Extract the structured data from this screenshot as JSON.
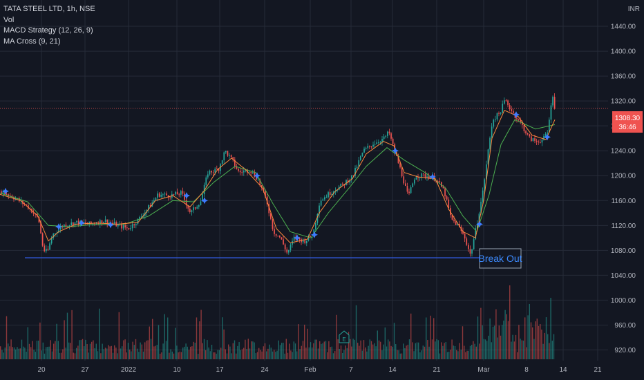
{
  "legend": {
    "symbol": "TATA STEEL LTD, 1h, NSE",
    "vol": "Vol",
    "macd": "MACD Strategy (12, 26, 9)",
    "ma": "MA Cross (9, 21)"
  },
  "currency_label": "INR",
  "price_badge": {
    "price": "1308.30",
    "countdown": "36:46"
  },
  "annotation": {
    "text": "Break Out"
  },
  "colors": {
    "background": "#131722",
    "grid": "#262b38",
    "up": "#26a69a",
    "down": "#ef5350",
    "ma_fast": "#ff8a3d",
    "ma_slow": "#4caf50",
    "signal": "#3d7bff",
    "support": "#3056d3"
  },
  "chart_data": {
    "type": "candlestick",
    "ylim": [
      905,
      1480
    ],
    "y_ticks": [
      1440,
      1400,
      1360,
      1320,
      1280,
      1240,
      1200,
      1160,
      1120,
      1080,
      1040,
      1000,
      960,
      920
    ],
    "y_tick_labels": [
      "1440.00",
      "1400.00",
      "1360.00",
      "1320.00",
      "1280.00",
      "1240.00",
      "1200.00",
      "1160.00",
      "1120.00",
      "1080.00",
      "1040.00",
      "1000.00",
      "960.00",
      "920.00"
    ],
    "x_ticks": [
      "20",
      "27",
      "2022",
      "10",
      "17",
      "24",
      "Feb",
      "7",
      "14",
      "21",
      "Mar",
      "8",
      "14",
      "21"
    ],
    "current_price": 1308.3,
    "support_level": 1068,
    "price_path": [
      [
        0,
        1175
      ],
      [
        15,
        1168
      ],
      [
        40,
        1150
      ],
      [
        55,
        1130
      ],
      [
        62,
        1080
      ],
      [
        68,
        1078
      ],
      [
        75,
        1105
      ],
      [
        90,
        1120
      ],
      [
        110,
        1125
      ],
      [
        130,
        1122
      ],
      [
        150,
        1128
      ],
      [
        170,
        1120
      ],
      [
        185,
        1115
      ],
      [
        200,
        1130
      ],
      [
        215,
        1150
      ],
      [
        228,
        1170
      ],
      [
        245,
        1168
      ],
      [
        262,
        1172
      ],
      [
        275,
        1140
      ],
      [
        290,
        1160
      ],
      [
        300,
        1205
      ],
      [
        315,
        1210
      ],
      [
        325,
        1240
      ],
      [
        335,
        1225
      ],
      [
        345,
        1205
      ],
      [
        360,
        1210
      ],
      [
        372,
        1195
      ],
      [
        385,
        1160
      ],
      [
        395,
        1110
      ],
      [
        405,
        1100
      ],
      [
        415,
        1075
      ],
      [
        425,
        1100
      ],
      [
        440,
        1095
      ],
      [
        452,
        1105
      ],
      [
        462,
        1160
      ],
      [
        480,
        1175
      ],
      [
        495,
        1185
      ],
      [
        510,
        1200
      ],
      [
        525,
        1240
      ],
      [
        540,
        1252
      ],
      [
        555,
        1260
      ],
      [
        562,
        1270
      ],
      [
        570,
        1240
      ],
      [
        580,
        1205
      ],
      [
        590,
        1165
      ],
      [
        600,
        1200
      ],
      [
        615,
        1200
      ],
      [
        630,
        1195
      ],
      [
        642,
        1175
      ],
      [
        652,
        1130
      ],
      [
        662,
        1120
      ],
      [
        672,
        1100
      ],
      [
        680,
        1072
      ],
      [
        688,
        1115
      ],
      [
        698,
        1175
      ],
      [
        705,
        1235
      ],
      [
        712,
        1290
      ],
      [
        722,
        1300
      ],
      [
        730,
        1322
      ],
      [
        742,
        1300
      ],
      [
        755,
        1280
      ],
      [
        765,
        1260
      ],
      [
        775,
        1255
      ],
      [
        785,
        1258
      ],
      [
        792,
        1270
      ],
      [
        798,
        1330
      ],
      [
        803,
        1306
      ]
    ],
    "ma_fast": [
      [
        0,
        1170
      ],
      [
        30,
        1160
      ],
      [
        55,
        1135
      ],
      [
        70,
        1095
      ],
      [
        85,
        1110
      ],
      [
        110,
        1122
      ],
      [
        140,
        1124
      ],
      [
        170,
        1122
      ],
      [
        200,
        1125
      ],
      [
        225,
        1160
      ],
      [
        250,
        1168
      ],
      [
        275,
        1150
      ],
      [
        295,
        1175
      ],
      [
        315,
        1210
      ],
      [
        335,
        1228
      ],
      [
        355,
        1210
      ],
      [
        380,
        1180
      ],
      [
        400,
        1115
      ],
      [
        420,
        1092
      ],
      [
        445,
        1098
      ],
      [
        462,
        1140
      ],
      [
        485,
        1175
      ],
      [
        510,
        1195
      ],
      [
        530,
        1235
      ],
      [
        555,
        1255
      ],
      [
        570,
        1248
      ],
      [
        585,
        1205
      ],
      [
        605,
        1198
      ],
      [
        630,
        1195
      ],
      [
        650,
        1145
      ],
      [
        670,
        1110
      ],
      [
        688,
        1100
      ],
      [
        700,
        1160
      ],
      [
        712,
        1260
      ],
      [
        730,
        1305
      ],
      [
        750,
        1295
      ],
      [
        770,
        1265
      ],
      [
        790,
        1258
      ],
      [
        803,
        1290
      ]
    ],
    "ma_slow": [
      [
        0,
        1172
      ],
      [
        40,
        1158
      ],
      [
        70,
        1120
      ],
      [
        100,
        1118
      ],
      [
        140,
        1122
      ],
      [
        180,
        1122
      ],
      [
        215,
        1135
      ],
      [
        250,
        1160
      ],
      [
        280,
        1158
      ],
      [
        310,
        1190
      ],
      [
        340,
        1215
      ],
      [
        370,
        1205
      ],
      [
        395,
        1155
      ],
      [
        420,
        1110
      ],
      [
        450,
        1100
      ],
      [
        475,
        1140
      ],
      [
        505,
        1180
      ],
      [
        530,
        1215
      ],
      [
        560,
        1245
      ],
      [
        585,
        1225
      ],
      [
        615,
        1205
      ],
      [
        645,
        1180
      ],
      [
        670,
        1135
      ],
      [
        690,
        1110
      ],
      [
        708,
        1170
      ],
      [
        725,
        1250
      ],
      [
        745,
        1290
      ],
      [
        775,
        1275
      ],
      [
        803,
        1282
      ]
    ],
    "signals": [
      [
        8,
        1175
      ],
      [
        85,
        1118
      ],
      [
        118,
        1124
      ],
      [
        160,
        1121
      ],
      [
        270,
        1168
      ],
      [
        296,
        1160
      ],
      [
        372,
        1200
      ],
      [
        430,
        1100
      ],
      [
        455,
        1105
      ],
      [
        572,
        1240
      ],
      [
        626,
        1198
      ],
      [
        694,
        1122
      ],
      [
        747,
        1298
      ],
      [
        792,
        1262
      ]
    ],
    "volume_max": 140
  }
}
